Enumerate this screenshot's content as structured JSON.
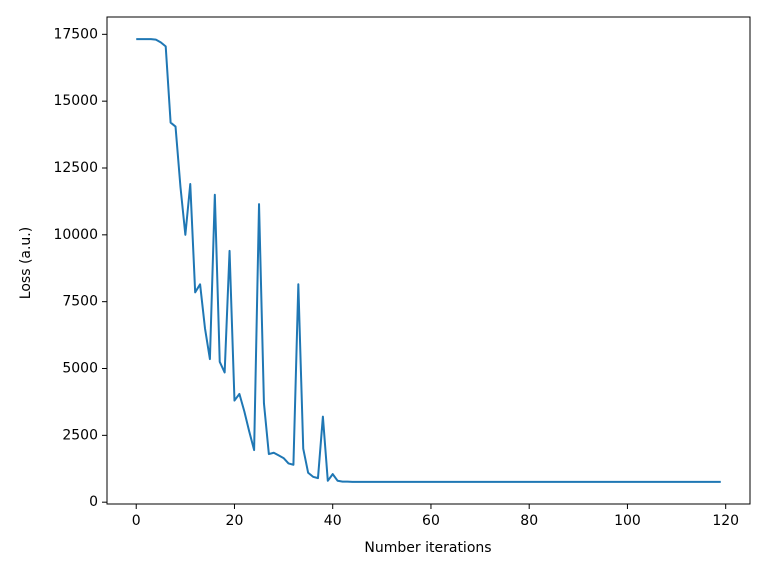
{
  "chart_data": {
    "type": "line",
    "xlabel": "Number iterations",
    "ylabel": "Loss (a.u.)",
    "x": [
      0,
      1,
      2,
      3,
      4,
      5,
      6,
      7,
      8,
      9,
      10,
      11,
      12,
      13,
      14,
      15,
      16,
      17,
      18,
      19,
      20,
      21,
      22,
      23,
      24,
      25,
      26,
      27,
      28,
      29,
      30,
      31,
      32,
      33,
      34,
      35,
      36,
      37,
      38,
      39,
      40,
      41,
      42,
      43,
      44,
      45,
      46,
      47,
      48,
      49,
      50,
      51,
      52,
      53,
      54,
      55,
      56,
      57,
      58,
      59,
      60,
      61,
      62,
      63,
      64,
      65,
      66,
      67,
      68,
      69,
      70,
      71,
      72,
      73,
      74,
      75,
      76,
      77,
      78,
      79,
      80,
      81,
      82,
      83,
      84,
      85,
      86,
      87,
      88,
      89,
      90,
      91,
      92,
      93,
      94,
      95,
      96,
      97,
      98,
      99,
      100,
      101,
      102,
      103,
      104,
      105,
      106,
      107,
      108,
      109,
      110,
      111,
      112,
      113,
      114,
      115,
      116,
      117,
      118,
      119
    ],
    "series": [
      {
        "color": "#1f77b4",
        "values": [
          17320,
          17320,
          17320,
          17320,
          17300,
          17200,
          17050,
          14200,
          14050,
          11800,
          10000,
          11900,
          7850,
          8150,
          6500,
          5350,
          11500,
          5250,
          4850,
          9400,
          3800,
          4050,
          3400,
          2650,
          1950,
          11150,
          3700,
          1800,
          1850,
          1750,
          1650,
          1450,
          1400,
          8150,
          2000,
          1100,
          950,
          900,
          3200,
          800,
          1050,
          800,
          770,
          770,
          760,
          760,
          760,
          760,
          760,
          760,
          760,
          760,
          760,
          760,
          760,
          760,
          760,
          760,
          760,
          760,
          760,
          760,
          760,
          760,
          760,
          760,
          760,
          760,
          760,
          760,
          760,
          760,
          760,
          760,
          760,
          760,
          760,
          760,
          760,
          760,
          760,
          760,
          760,
          760,
          760,
          760,
          760,
          760,
          760,
          760,
          760,
          760,
          760,
          760,
          760,
          760,
          760,
          760,
          760,
          760,
          760,
          760,
          760,
          760,
          760,
          760,
          760,
          760,
          760,
          760,
          760,
          760,
          760,
          760,
          760,
          760,
          760,
          760,
          760,
          760
        ]
      }
    ],
    "xlim": [
      -5.95,
      124.95
    ],
    "xticks": [
      0,
      20,
      40,
      60,
      80,
      100,
      120
    ],
    "ylim": [
      -68,
      18148
    ],
    "yticks": [
      0,
      2500,
      5000,
      7500,
      10000,
      12500,
      15000,
      17500
    ]
  }
}
